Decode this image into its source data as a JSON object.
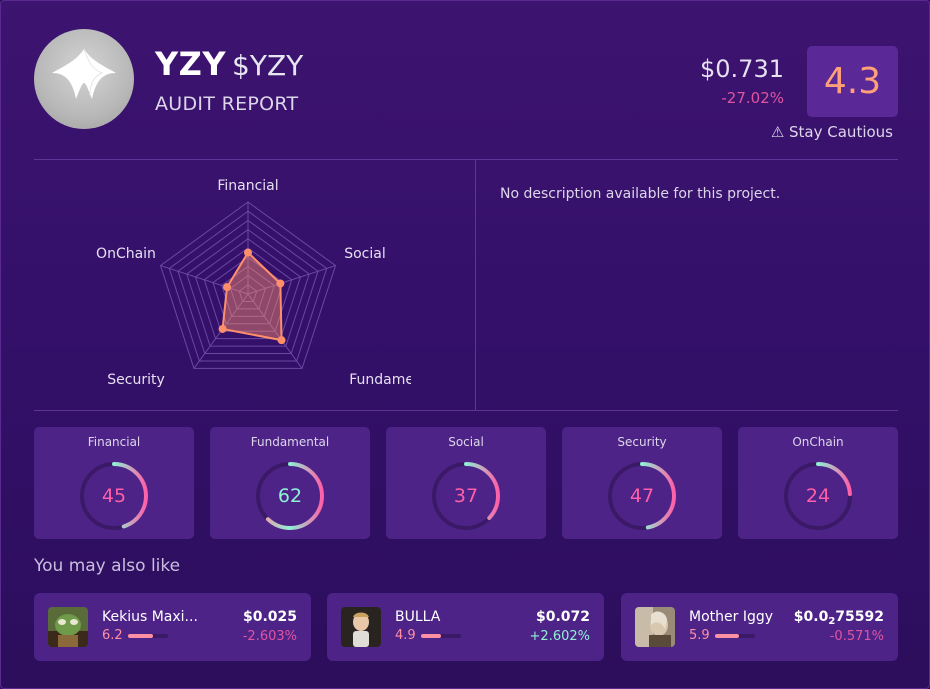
{
  "header": {
    "name": "YZY",
    "ticker": "$YZY",
    "subtitle": "AUDIT REPORT",
    "price": "$0.731",
    "change": "-27.02%",
    "score": "4.3",
    "warning": "⚠ Stay Cautious",
    "logo_icon": "yzy-logo-icon"
  },
  "description": "No description available for this project.",
  "radar": {
    "axes": [
      "Financial",
      "Social",
      "Fundamental",
      "Security",
      "OnChain"
    ],
    "values": [
      45,
      37,
      62,
      47,
      24
    ],
    "max": 100,
    "fill_color": "#ff8f6b"
  },
  "metrics": [
    {
      "label": "Financial",
      "value": 45,
      "color": "#ff5fa8"
    },
    {
      "label": "Fundamental",
      "value": 62,
      "color": "#8ff0d6"
    },
    {
      "label": "Social",
      "value": 37,
      "color": "#ff5fa8"
    },
    {
      "label": "Security",
      "value": 47,
      "color": "#ff5fa8"
    },
    {
      "label": "OnChain",
      "value": 24,
      "color": "#ff5fa8"
    }
  ],
  "suggestions_title": "You may also like",
  "suggestions": [
    {
      "name": "Kekius Maxi...",
      "score": "6.2",
      "score_value": 6.2,
      "price": "$0.025",
      "change": "-2.603%",
      "change_color": "#e0559e",
      "icon": "kekius-avatar-icon"
    },
    {
      "name": "BULLA",
      "score": "4.9",
      "score_value": 4.9,
      "price": "$0.072",
      "change": "+2.602%",
      "change_color": "#8ff0d6",
      "icon": "bulla-avatar-icon"
    },
    {
      "name": "Mother Iggy",
      "score": "5.9",
      "score_value": 5.9,
      "price_prefix": "$0.0",
      "price_sub": "2",
      "price_suffix": "75592",
      "change": "-0.571%",
      "change_color": "#e0559e",
      "icon": "mother-iggy-avatar-icon"
    }
  ]
}
